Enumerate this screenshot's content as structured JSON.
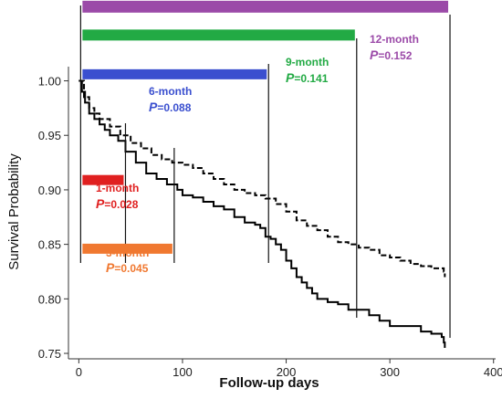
{
  "chart_data": {
    "type": "line",
    "title": "",
    "xlabel": "Follow-up days",
    "ylabel": "Survival Probability",
    "xlim": [
      -10,
      402
    ],
    "ylim": [
      0.745,
      1.013
    ],
    "xticks": [
      0,
      100,
      200,
      300,
      400
    ],
    "yticks": [
      0.75,
      0.8,
      0.85,
      0.9,
      0.95,
      1.0
    ],
    "ytick_labels": [
      "0.75",
      "0.80",
      "0.85",
      "0.90",
      "0.95",
      "1.00"
    ],
    "grid": false,
    "series": [
      {
        "style": "solid",
        "color": "#000000",
        "x": [
          0,
          3,
          6,
          10,
          15,
          20,
          25,
          30,
          38,
          45,
          55,
          65,
          75,
          85,
          95,
          100,
          110,
          120,
          130,
          140,
          150,
          160,
          170,
          175,
          180,
          185,
          190,
          195,
          200,
          205,
          210,
          215,
          220,
          225,
          230,
          240,
          250,
          260,
          270,
          280,
          290,
          300,
          310,
          320,
          330,
          340,
          350,
          352,
          353
        ],
        "y": [
          1.0,
          0.99,
          0.98,
          0.97,
          0.965,
          0.96,
          0.955,
          0.95,
          0.945,
          0.935,
          0.925,
          0.915,
          0.91,
          0.905,
          0.9,
          0.895,
          0.893,
          0.889,
          0.885,
          0.882,
          0.875,
          0.87,
          0.868,
          0.865,
          0.857,
          0.855,
          0.85,
          0.845,
          0.835,
          0.828,
          0.82,
          0.815,
          0.81,
          0.805,
          0.8,
          0.797,
          0.795,
          0.79,
          0.79,
          0.785,
          0.78,
          0.775,
          0.775,
          0.775,
          0.77,
          0.768,
          0.765,
          0.76,
          0.755
        ]
      },
      {
        "style": "dashed",
        "color": "#000000",
        "x": [
          0,
          5,
          10,
          15,
          20,
          30,
          40,
          50,
          60,
          70,
          80,
          90,
          100,
          110,
          120,
          130,
          140,
          150,
          160,
          170,
          180,
          190,
          200,
          210,
          220,
          230,
          240,
          250,
          260,
          270,
          280,
          290,
          300,
          310,
          320,
          330,
          340,
          350,
          352,
          353
        ],
        "y": [
          1.0,
          0.985,
          0.975,
          0.97,
          0.965,
          0.958,
          0.95,
          0.943,
          0.938,
          0.932,
          0.928,
          0.925,
          0.923,
          0.92,
          0.915,
          0.91,
          0.905,
          0.9,
          0.897,
          0.895,
          0.892,
          0.887,
          0.88,
          0.872,
          0.867,
          0.863,
          0.857,
          0.852,
          0.85,
          0.847,
          0.845,
          0.84,
          0.838,
          0.835,
          0.832,
          0.83,
          0.828,
          0.828,
          0.825,
          0.82
        ]
      }
    ],
    "annotations": [
      {
        "label": "1-month",
        "p": "0.028",
        "color": "#e02020",
        "end_day": 45,
        "bar_y": 0.909
      },
      {
        "label": "3-month",
        "p": "0.045",
        "color": "#f07830",
        "end_day": 92,
        "bar_y": 0.846
      },
      {
        "label": "6-month",
        "p": "0.088",
        "color": "#3a4fcf",
        "end_day": 183,
        "bar_y": 1.006
      },
      {
        "label": "9-month",
        "p": "0.141",
        "color": "#22aa44",
        "end_day": 268,
        "bar_y": 1.042
      },
      {
        "label": "12-month",
        "p": "0.152",
        "color": "#9b4aa8",
        "end_day": 358,
        "bar_y": 1.068
      }
    ],
    "p_symbol": "P"
  }
}
